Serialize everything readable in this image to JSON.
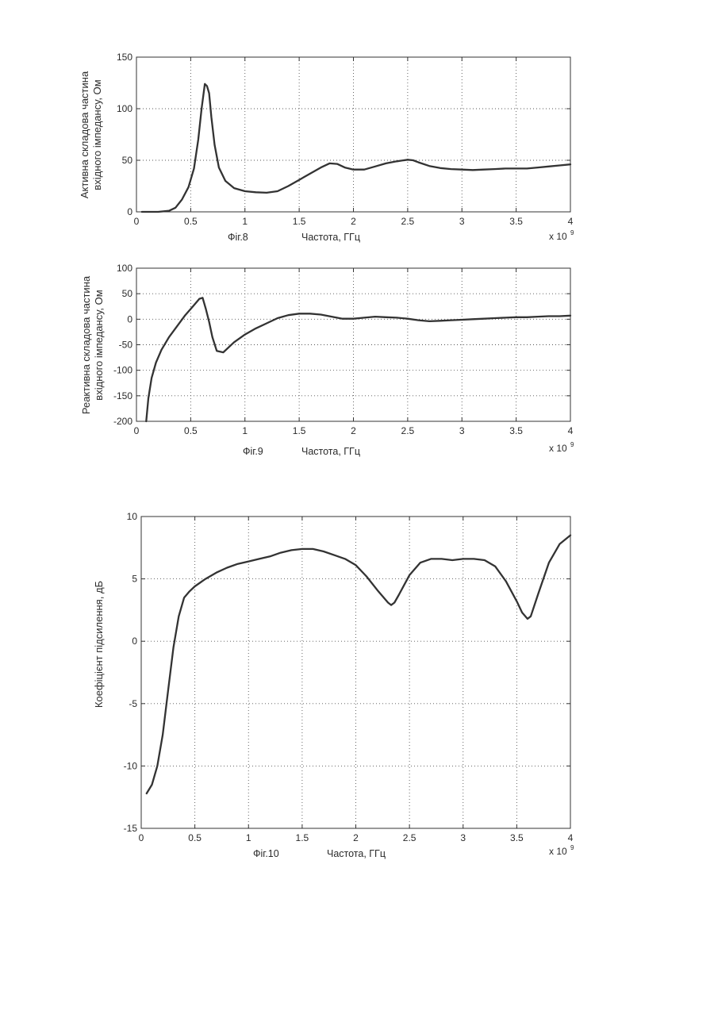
{
  "figures": [
    {
      "caption": "Фіг.8",
      "exponent_base": "x 10",
      "exponent_power": "9"
    },
    {
      "caption": "Фіг.9",
      "exponent_base": "x 10",
      "exponent_power": "9"
    },
    {
      "caption": "Фіг.10",
      "exponent_base": "x 10",
      "exponent_power": "9"
    }
  ],
  "chart_data": [
    {
      "type": "line",
      "title": "",
      "xlabel": "Частота, ГГц",
      "ylabel_lines": [
        "Активна складова частина",
        "вхідного імпедансу, Ом"
      ],
      "xlim": [
        0,
        4
      ],
      "ylim": [
        0,
        150
      ],
      "x_ticks": [
        0,
        0.5,
        1,
        1.5,
        2,
        2.5,
        3,
        3.5,
        4
      ],
      "x_tick_labels": [
        "0",
        "0.5",
        "1",
        "1.5",
        "2",
        "2.5",
        "3",
        "3.5",
        "4"
      ],
      "y_ticks": [
        0,
        50,
        100,
        150
      ],
      "y_tick_labels": [
        "0",
        "50",
        "100",
        "150"
      ],
      "grid": true,
      "series": [
        {
          "x": [
            0.05,
            0.2,
            0.3,
            0.36,
            0.42,
            0.48,
            0.53,
            0.57,
            0.6,
            0.63,
            0.65,
            0.67,
            0.69,
            0.72,
            0.76,
            0.82,
            0.9,
            1.0,
            1.1,
            1.2,
            1.3,
            1.4,
            1.5,
            1.6,
            1.7,
            1.78,
            1.85,
            1.92,
            2.0,
            2.1,
            2.2,
            2.3,
            2.4,
            2.5,
            2.55,
            2.6,
            2.7,
            2.8,
            2.9,
            3.0,
            3.1,
            3.2,
            3.3,
            3.4,
            3.5,
            3.6,
            3.7,
            3.8,
            3.9,
            4.0
          ],
          "y": [
            0,
            0,
            1,
            4,
            12,
            24,
            42,
            70,
            100,
            124,
            122,
            115,
            92,
            65,
            43,
            30,
            23,
            20,
            19,
            18.5,
            20,
            25,
            31,
            37,
            43,
            47,
            46.5,
            43,
            41,
            41,
            44,
            47,
            49,
            50.5,
            50,
            48,
            44.5,
            42.5,
            41.5,
            41,
            40.5,
            41,
            41.5,
            42,
            42,
            42,
            43,
            44,
            45,
            46
          ]
        }
      ]
    },
    {
      "type": "line",
      "title": "",
      "xlabel": "Частота, ГГц",
      "ylabel_lines": [
        "Реактивна складова частина",
        "вхідного імпедансу, Ом"
      ],
      "xlim": [
        0,
        4
      ],
      "ylim": [
        -200,
        100
      ],
      "x_ticks": [
        0,
        0.5,
        1,
        1.5,
        2,
        2.5,
        3,
        3.5,
        4
      ],
      "x_tick_labels": [
        "0",
        "0.5",
        "1",
        "1.5",
        "2",
        "2.5",
        "3",
        "3.5",
        "4"
      ],
      "y_ticks": [
        -200,
        -150,
        -100,
        -50,
        0,
        50,
        100
      ],
      "y_tick_labels": [
        "-200",
        "-150",
        "-100",
        "-50",
        "0",
        "50",
        "100"
      ],
      "grid": true,
      "series": [
        {
          "x": [
            0.09,
            0.11,
            0.14,
            0.18,
            0.23,
            0.3,
            0.38,
            0.45,
            0.52,
            0.58,
            0.61,
            0.64,
            0.67,
            0.7,
            0.74,
            0.8,
            0.9,
            1.0,
            1.1,
            1.2,
            1.3,
            1.4,
            1.5,
            1.6,
            1.7,
            1.8,
            1.9,
            2.0,
            2.1,
            2.2,
            2.3,
            2.4,
            2.5,
            2.6,
            2.7,
            2.8,
            2.9,
            3.0,
            3.1,
            3.2,
            3.3,
            3.4,
            3.5,
            3.6,
            3.7,
            3.8,
            3.9,
            4.0
          ],
          "y": [
            -200,
            -155,
            -115,
            -85,
            -60,
            -35,
            -12,
            8,
            25,
            40,
            42,
            20,
            -5,
            -35,
            -62,
            -65,
            -45,
            -30,
            -18,
            -8,
            2,
            8,
            11,
            11,
            9,
            5,
            1,
            1,
            3,
            5,
            4,
            3,
            1,
            -2,
            -4,
            -3,
            -2,
            -1,
            0,
            1,
            2,
            3,
            4,
            4,
            5,
            6,
            6,
            7
          ]
        }
      ]
    },
    {
      "type": "line",
      "title": "",
      "xlabel": "Частота, ГГц",
      "ylabel_lines": [
        "Коефіцієнт підсилення, дБ"
      ],
      "xlim": [
        0,
        4
      ],
      "ylim": [
        -15,
        10
      ],
      "x_ticks": [
        0,
        0.5,
        1,
        1.5,
        2,
        2.5,
        3,
        3.5,
        4
      ],
      "x_tick_labels": [
        "0",
        "0.5",
        "1",
        "1.5",
        "2",
        "2.5",
        "3",
        "3.5",
        "4"
      ],
      "y_ticks": [
        -15,
        -10,
        -5,
        0,
        5,
        10
      ],
      "y_tick_labels": [
        "-15",
        "-10",
        "-5",
        "0",
        "5",
        "10"
      ],
      "grid": true,
      "series": [
        {
          "x": [
            0.05,
            0.1,
            0.15,
            0.2,
            0.25,
            0.3,
            0.35,
            0.4,
            0.45,
            0.5,
            0.6,
            0.7,
            0.8,
            0.9,
            1.0,
            1.1,
            1.2,
            1.3,
            1.4,
            1.5,
            1.6,
            1.7,
            1.8,
            1.9,
            2.0,
            2.1,
            2.2,
            2.3,
            2.33,
            2.36,
            2.4,
            2.5,
            2.6,
            2.7,
            2.8,
            2.9,
            3.0,
            3.1,
            3.2,
            3.3,
            3.4,
            3.5,
            3.55,
            3.6,
            3.63,
            3.7,
            3.8,
            3.9,
            4.0
          ],
          "y": [
            -12.2,
            -11.5,
            -10,
            -7.5,
            -4,
            -0.5,
            2,
            3.5,
            4.0,
            4.4,
            5.0,
            5.5,
            5.9,
            6.2,
            6.4,
            6.6,
            6.8,
            7.1,
            7.3,
            7.4,
            7.4,
            7.2,
            6.9,
            6.6,
            6.1,
            5.2,
            4.1,
            3.1,
            2.9,
            3.1,
            3.7,
            5.3,
            6.3,
            6.6,
            6.6,
            6.5,
            6.6,
            6.6,
            6.5,
            6.0,
            4.8,
            3.2,
            2.3,
            1.8,
            2.0,
            3.8,
            6.3,
            7.8,
            8.5
          ]
        }
      ]
    }
  ]
}
